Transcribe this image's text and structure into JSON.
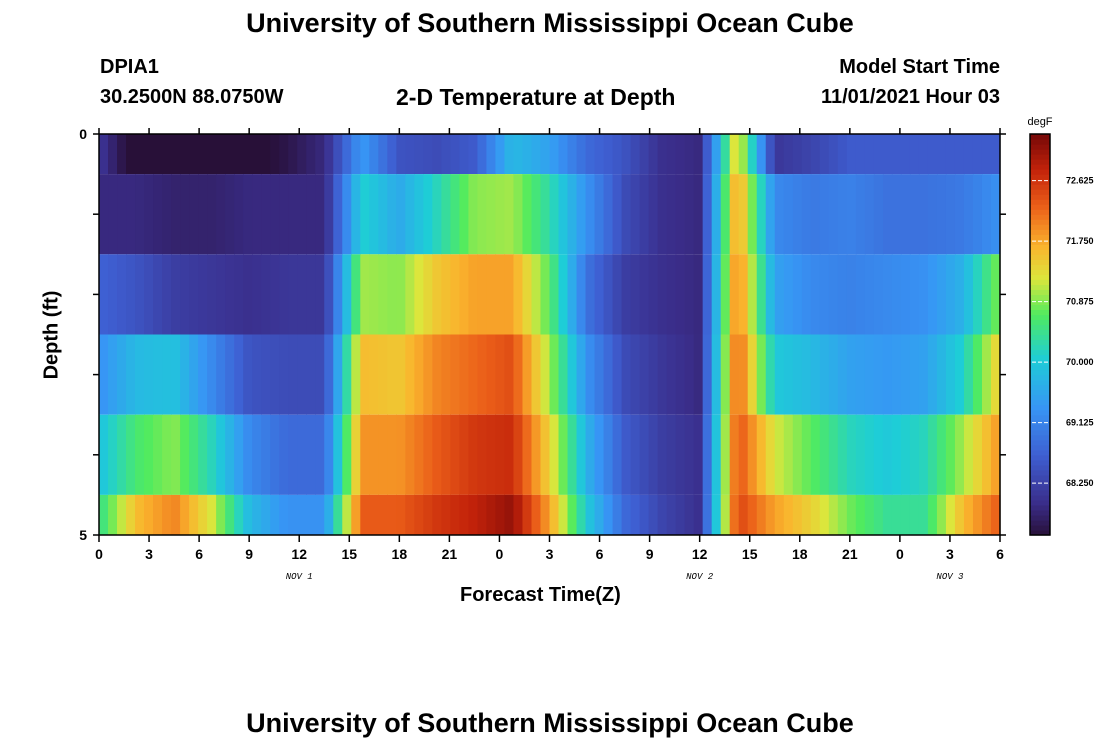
{
  "header": {
    "title": "University of Southern Mississippi Ocean Cube",
    "station": "DPIA1",
    "coords": "30.2500N  88.0750W",
    "subtitle": "2-D Temperature at Depth",
    "model_start_label": "Model Start Time",
    "model_start_time": "11/01/2021 Hour 03",
    "bottom_title": "University of Southern Mississippi Ocean Cube"
  },
  "chart_data": {
    "type": "heatmap",
    "title": "2-D Temperature at Depth",
    "xlabel": "Forecast Time(Z)",
    "ylabel": "Depth (ft)",
    "x_tick_labels": [
      "0",
      "3",
      "6",
      "9",
      "12",
      "15",
      "18",
      "21",
      "0",
      "3",
      "6",
      "9",
      "12",
      "15",
      "18",
      "21",
      "0",
      "3",
      "6"
    ],
    "date_labels": [
      {
        "label": "NOV 1",
        "hour": 12
      },
      {
        "label": "NOV 2",
        "hour": 36
      },
      {
        "label": "NOV 3",
        "hour": 51
      }
    ],
    "x_range_hours": [
      0,
      54
    ],
    "y_tick_labels": [
      "0",
      "5"
    ],
    "y_range_ft": [
      0,
      5
    ],
    "hours": [
      0,
      2.25,
      4.5,
      6.75,
      9,
      11.25,
      13.5,
      15.75,
      18,
      20.25,
      22.5,
      24.75,
      27,
      29.25,
      31.5,
      33.75,
      36,
      38.25,
      40.5,
      42.75,
      45,
      47.25,
      49.5,
      51.75,
      54
    ],
    "depth_bands_ft": [
      [
        0,
        0.5
      ],
      [
        0.5,
        1.5
      ],
      [
        1.5,
        2.5
      ],
      [
        2.5,
        3.5
      ],
      [
        3.5,
        4.5
      ],
      [
        4.5,
        5.0
      ]
    ],
    "values": [
      [
        68.1,
        67.3,
        66.9,
        67.1,
        67.4,
        67.6,
        67.9,
        69.4,
        68.5,
        68.4,
        68.6,
        69.8,
        69.5,
        68.8,
        68.5,
        68.0,
        67.9,
        71.5,
        68.1,
        68.3,
        68.6,
        68.6,
        68.6,
        68.6,
        68.6
      ],
      [
        67.9,
        67.9,
        67.8,
        67.8,
        67.9,
        67.9,
        67.9,
        70.1,
        69.6,
        70.2,
        70.9,
        71.0,
        70.3,
        69.3,
        68.4,
        68.0,
        67.9,
        71.9,
        69.2,
        69.0,
        69.1,
        68.9,
        68.9,
        69.0,
        69.3
      ],
      [
        68.7,
        68.5,
        68.2,
        68.1,
        68.0,
        68.1,
        68.1,
        71.0,
        70.9,
        71.5,
        71.8,
        71.8,
        70.7,
        68.9,
        68.2,
        68.0,
        67.9,
        72.1,
        69.5,
        69.2,
        69.1,
        69.2,
        69.3,
        69.7,
        70.9
      ],
      [
        69.3,
        69.8,
        69.9,
        69.2,
        68.5,
        68.4,
        68.4,
        71.6,
        71.5,
        72.0,
        72.2,
        72.4,
        71.0,
        69.3,
        68.4,
        68.1,
        67.9,
        72.3,
        70.0,
        69.8,
        69.5,
        69.4,
        69.5,
        70.1,
        71.5
      ],
      [
        69.9,
        70.6,
        70.9,
        70.2,
        69.2,
        68.8,
        68.8,
        71.9,
        71.9,
        72.3,
        72.6,
        72.7,
        71.4,
        69.7,
        68.6,
        68.2,
        68.0,
        72.4,
        71.2,
        70.7,
        70.2,
        70.0,
        70.2,
        71.0,
        71.9
      ],
      [
        70.4,
        71.6,
        72.0,
        71.2,
        69.8,
        69.3,
        69.3,
        72.3,
        72.3,
        72.6,
        72.8,
        73.1,
        71.8,
        70.0,
        68.8,
        68.3,
        68.0,
        72.5,
        71.8,
        71.4,
        70.8,
        70.4,
        70.4,
        71.6,
        72.3
      ]
    ],
    "colorbar": {
      "unit": "degF",
      "ticks": [
        "72.625",
        "71.750",
        "70.875",
        "70.000",
        "69.125",
        "68.250"
      ],
      "range": [
        67.5,
        73.3
      ]
    }
  }
}
